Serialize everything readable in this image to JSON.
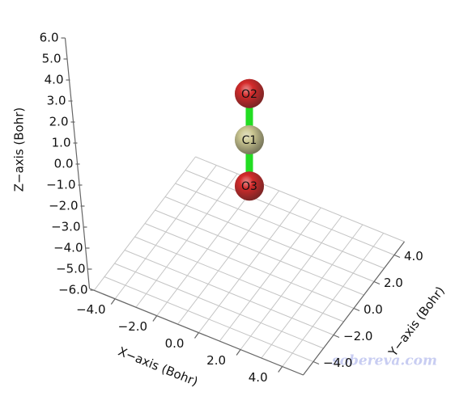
{
  "chart_data": {
    "type": "molecule3d",
    "xlabel": "X−axis (Bohr)",
    "ylabel": "Y−axis (Bohr)",
    "zlabel": "Z−axis (Bohr)",
    "xticks": [
      {
        "value": -4,
        "label": "−4.0"
      },
      {
        "value": -2,
        "label": "−2.0"
      },
      {
        "value": 0,
        "label": "0.0"
      },
      {
        "value": 2,
        "label": "2.0"
      },
      {
        "value": 4,
        "label": "4.0"
      }
    ],
    "yticks": [
      {
        "value": -4,
        "label": "−4.0"
      },
      {
        "value": -2,
        "label": "−2.0"
      },
      {
        "value": 0,
        "label": "0.0"
      },
      {
        "value": 2,
        "label": "2.0"
      },
      {
        "value": 4,
        "label": "4.0"
      }
    ],
    "zticks": [
      {
        "value": 6,
        "label": "6.0"
      },
      {
        "value": 5,
        "label": "5.0"
      },
      {
        "value": 4,
        "label": "4.0"
      },
      {
        "value": 3,
        "label": "3.0"
      },
      {
        "value": 2,
        "label": "2.0"
      },
      {
        "value": 1,
        "label": "1.0"
      },
      {
        "value": 0,
        "label": "0.0"
      },
      {
        "value": -1,
        "label": "−1.0"
      },
      {
        "value": -2,
        "label": "−2.0"
      },
      {
        "value": -3,
        "label": "−3.0"
      },
      {
        "value": -4,
        "label": "−4.0"
      },
      {
        "value": -5,
        "label": "−5.0"
      },
      {
        "value": -6,
        "label": "−6.0"
      }
    ],
    "grid": true,
    "atoms": [
      {
        "label": "O2",
        "x": 0,
        "y": 0,
        "z": 2.2,
        "color": "#d42a2a"
      },
      {
        "label": "C1",
        "x": 0,
        "y": 0,
        "z": 0,
        "color": "#cbc792"
      },
      {
        "label": "O3",
        "x": 0,
        "y": 0,
        "z": -2.2,
        "color": "#d42a2a"
      }
    ],
    "bond_color": "#22dd22",
    "watermark": "sobereva.com"
  }
}
